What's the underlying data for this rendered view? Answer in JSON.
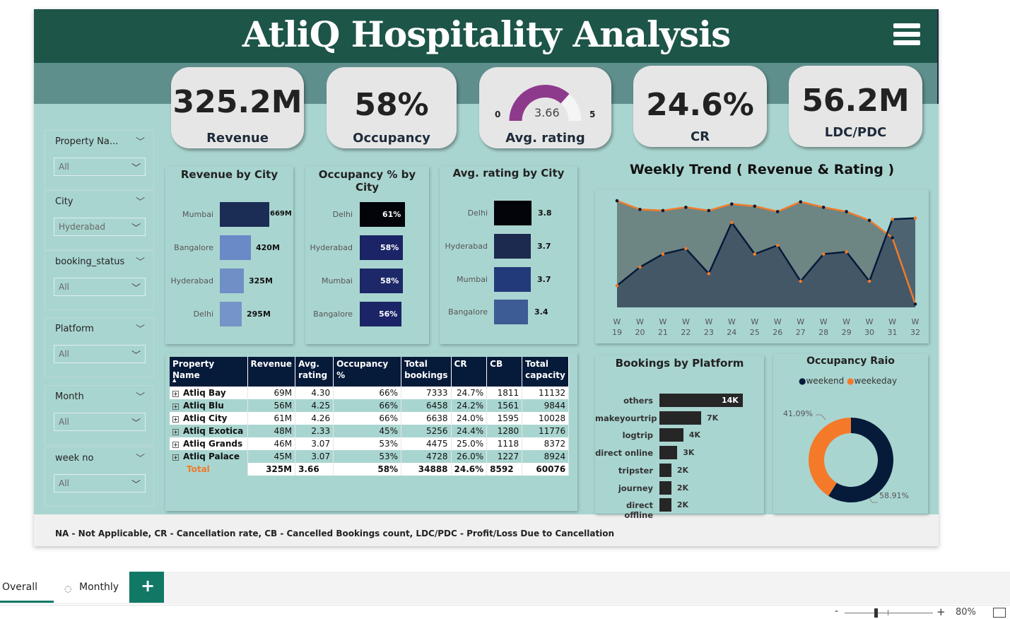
{
  "header": {
    "title": "AtliQ Hospitality Analysis",
    "menu_icon": "hamburger-menu-icon"
  },
  "kpis": {
    "revenue": {
      "value": "325.2M",
      "label": "Revenue"
    },
    "occupancy": {
      "value": "58%",
      "label": "Occupancy"
    },
    "avg_rating": {
      "value": 3.66,
      "min": "0",
      "max": "5",
      "label": "Avg. rating",
      "value_text": "3.66",
      "gauge_color": "#8e3a8c"
    },
    "cr": {
      "value": "24.6%",
      "label": "CR"
    },
    "ldc": {
      "value": "56.2M",
      "label": "LDC/PDC"
    }
  },
  "slicers": [
    {
      "title": "Property Na...",
      "value": "All"
    },
    {
      "title": "City",
      "value": "Hyderabad"
    },
    {
      "title": "booking_status",
      "value": "All"
    },
    {
      "title": "Platform",
      "value": "All"
    },
    {
      "title": "Month",
      "value": "All"
    },
    {
      "title": "week no",
      "value": "All"
    }
  ],
  "revenue_by_city": {
    "title": "Revenue by City",
    "items": [
      {
        "city": "Mumbai",
        "label": "669M",
        "value": 669,
        "color": "#1b2c55"
      },
      {
        "city": "Bangalore",
        "label": "420M",
        "value": 420,
        "color": "#6a89c7"
      },
      {
        "city": "Hyderabad",
        "label": "325M",
        "value": 325,
        "color": "#6f8fc6"
      },
      {
        "city": "Delhi",
        "label": "295M",
        "value": 295,
        "color": "#7594c8"
      }
    ]
  },
  "occupancy_by_city": {
    "title": "Occupancy % by City",
    "items": [
      {
        "city": "Delhi",
        "label": "61%",
        "value": 61,
        "color": "#02040a"
      },
      {
        "city": "Hyderabad",
        "label": "58%",
        "value": 58,
        "color": "#1a2466"
      },
      {
        "city": "Mumbai",
        "label": "58%",
        "value": 58,
        "color": "#1c2868"
      },
      {
        "city": "Bangalore",
        "label": "56%",
        "value": 56,
        "color": "#1a2466"
      }
    ]
  },
  "rating_by_city": {
    "title": "Avg. rating by City",
    "items": [
      {
        "city": "Delhi",
        "label": "3.8",
        "value": 3.8,
        "color": "#02040a"
      },
      {
        "city": "Hyderabad",
        "label": "3.7",
        "value": 3.7,
        "color": "#1b2a4e"
      },
      {
        "city": "Mumbai",
        "label": "3.7",
        "value": 3.7,
        "color": "#233a7a"
      },
      {
        "city": "Bangalore",
        "label": "3.4",
        "value": 3.4,
        "color": "#3d5b95"
      }
    ]
  },
  "weekly_trend": {
    "title": "Weekly Trend ( Revenue & Rating )",
    "x_labels_top": [
      "W",
      "W",
      "W",
      "W",
      "W",
      "W",
      "W",
      "W",
      "W",
      "W",
      "W",
      "W",
      "W",
      "W"
    ],
    "x_labels_bottom": [
      "19",
      "20",
      "21",
      "22",
      "23",
      "24",
      "25",
      "26",
      "27",
      "28",
      "29",
      "30",
      "31",
      "32"
    ]
  },
  "chart_data": {
    "type": "area",
    "x": [
      "W 19",
      "W 20",
      "W 21",
      "W 22",
      "W 23",
      "W 24",
      "W 25",
      "W 26",
      "W 27",
      "W 28",
      "W 29",
      "W 30",
      "W 31",
      "W 32"
    ],
    "series": [
      {
        "values": [
          0.98,
          0.9,
          0.89,
          0.92,
          0.89,
          0.95,
          0.93,
          0.88,
          0.97,
          0.92,
          0.88,
          0.8,
          0.64,
          0.03
        ],
        "color": "#f07b2a"
      },
      {
        "values": [
          0.2,
          0.37,
          0.49,
          0.54,
          0.31,
          0.78,
          0.49,
          0.57,
          0.24,
          0.49,
          0.51,
          0.24,
          0.81,
          0.82
        ],
        "color": "#061a3a"
      }
    ]
  },
  "bookings_by_platform": {
    "title": "Bookings by Platform",
    "items": [
      {
        "platform": "others",
        "label": "14K",
        "value": 14
      },
      {
        "platform": "makeyourtrip",
        "label": "7K",
        "value": 7
      },
      {
        "platform": "logtrip",
        "label": "4K",
        "value": 4
      },
      {
        "platform": "direct online",
        "label": "3K",
        "value": 3
      },
      {
        "platform": "tripster",
        "label": "2K",
        "value": 2
      },
      {
        "platform": "journey",
        "label": "2K",
        "value": 2
      },
      {
        "platform": "direct offline",
        "label": "2K",
        "value": 2
      }
    ]
  },
  "occupancy_ratio": {
    "title": "Occupancy Raio",
    "legend": [
      {
        "name": "weekend",
        "color": "#061a3a"
      },
      {
        "name": "weekeday",
        "color": "#f47a2a"
      }
    ],
    "weekend_pct": 58.91,
    "weekday_pct": 41.09,
    "weekday_label": "41.09%",
    "weekend_label": "58.91%"
  },
  "table": {
    "headers": [
      [
        "Property Name"
      ],
      [
        "Revenue"
      ],
      [
        "Avg.",
        "rating"
      ],
      [
        "Occupancy %"
      ],
      [
        "Total",
        "bookings"
      ],
      [
        "CR"
      ],
      [
        "CB"
      ],
      [
        "Total",
        "capacity"
      ]
    ],
    "rows": [
      [
        "Atliq Bay",
        "69M",
        "4.30",
        "66%",
        "7333",
        "24.7%",
        "1811",
        "11132"
      ],
      [
        "Atliq Blu",
        "56M",
        "4.25",
        "66%",
        "6458",
        "24.2%",
        "1561",
        "9844"
      ],
      [
        "Atliq City",
        "61M",
        "4.26",
        "66%",
        "6638",
        "24.0%",
        "1595",
        "10028"
      ],
      [
        "Atliq Exotica",
        "48M",
        "2.33",
        "45%",
        "5256",
        "24.4%",
        "1280",
        "11776"
      ],
      [
        "Atliq Grands",
        "46M",
        "3.07",
        "53%",
        "4475",
        "25.0%",
        "1118",
        "8372"
      ],
      [
        "Atliq Palace",
        "45M",
        "3.07",
        "53%",
        "4728",
        "26.0%",
        "1227",
        "8924"
      ]
    ],
    "total": [
      "Total",
      "325M",
      "3.66",
      "58%",
      "34888",
      "24.6%",
      "8592",
      "60076"
    ]
  },
  "footnote": "NA - Not Applicable, CR - Cancellation rate, CB - Cancelled Bookings count, LDC/PDC - Profit/Loss Due to Cancellation",
  "tabs": [
    {
      "label": "Overall",
      "active": true
    },
    {
      "label": "Monthly",
      "active": false,
      "icon": "hidden-eye-icon"
    }
  ],
  "add_tab_icon": "plus-icon",
  "zoom": {
    "minus": "-",
    "plus": "+",
    "level": "80%",
    "level_fraction": 0.8
  }
}
